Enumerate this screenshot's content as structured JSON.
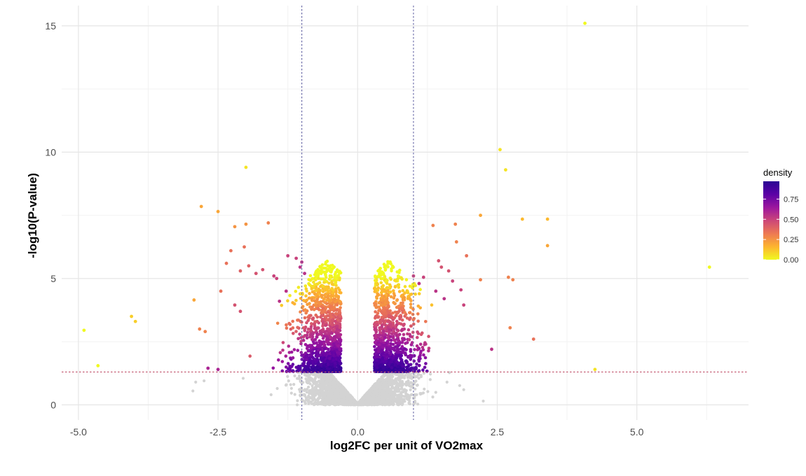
{
  "chart_data": {
    "type": "scatter",
    "xlabel": "log2FC per unit of VO2max",
    "ylabel": "-log10(P-value)",
    "xlim": [
      -5.3,
      7.0
    ],
    "ylim": [
      -0.6,
      15.8
    ],
    "x_ticks": [
      -5.0,
      -2.5,
      0.0,
      2.5,
      5.0
    ],
    "x_tick_labels": [
      "-5.0",
      "-2.5",
      "0.0",
      "2.5",
      "5.0"
    ],
    "y_ticks": [
      0,
      5,
      10,
      15
    ],
    "y_tick_labels": [
      "0",
      "5",
      "10",
      "15"
    ],
    "grid": true,
    "thresholds": {
      "vertical_lines_x": [
        -1.0,
        1.0
      ],
      "horizontal_line_y": 1.3,
      "colors": {
        "vertical": "#6b6ba8",
        "horizontal": "#c0506a"
      }
    },
    "legend": {
      "title": "density",
      "placement": "right",
      "ticks": [
        0.0,
        0.25,
        0.5,
        0.75
      ],
      "tick_labels": [
        "0.00",
        "0.25",
        "0.50",
        "0.75"
      ],
      "range": [
        0,
        0.97
      ],
      "colors": [
        "#f0f921",
        "#fdb42f",
        "#ed7953",
        "#cc4778",
        "#9c179e",
        "#5c01a6",
        "#2a0593"
      ]
    },
    "nonsignificant_color": "#d3d3d3",
    "points": [
      {
        "x": 4.07,
        "y": 15.1,
        "d": 0.0
      },
      {
        "x": 2.55,
        "y": 10.1,
        "d": 0.05
      },
      {
        "x": 2.65,
        "y": 9.3,
        "d": 0.05
      },
      {
        "x": 6.3,
        "y": 5.45,
        "d": 0.0
      },
      {
        "x": -2.0,
        "y": 9.4,
        "d": 0.05
      },
      {
        "x": -2.8,
        "y": 7.85,
        "d": 0.2
      },
      {
        "x": -2.5,
        "y": 7.65,
        "d": 0.2
      },
      {
        "x": -2.2,
        "y": 7.05,
        "d": 0.25
      },
      {
        "x": -2.0,
        "y": 7.15,
        "d": 0.25
      },
      {
        "x": -1.6,
        "y": 7.2,
        "d": 0.3
      },
      {
        "x": 2.2,
        "y": 7.5,
        "d": 0.2
      },
      {
        "x": 2.95,
        "y": 7.35,
        "d": 0.15
      },
      {
        "x": 3.4,
        "y": 7.35,
        "d": 0.15
      },
      {
        "x": 3.4,
        "y": 6.3,
        "d": 0.2
      },
      {
        "x": 1.35,
        "y": 7.1,
        "d": 0.3
      },
      {
        "x": 1.75,
        "y": 7.15,
        "d": 0.3
      },
      {
        "x": 1.77,
        "y": 6.45,
        "d": 0.3
      },
      {
        "x": 1.95,
        "y": 5.9,
        "d": 0.35
      },
      {
        "x": 2.2,
        "y": 4.95,
        "d": 0.3
      },
      {
        "x": 2.7,
        "y": 5.05,
        "d": 0.3
      },
      {
        "x": 2.78,
        "y": 4.95,
        "d": 0.3
      },
      {
        "x": 2.73,
        "y": 3.05,
        "d": 0.3
      },
      {
        "x": 3.15,
        "y": 2.6,
        "d": 0.35
      },
      {
        "x": 2.4,
        "y": 2.2,
        "d": 0.55
      },
      {
        "x": 4.25,
        "y": 1.4,
        "d": 0.05
      },
      {
        "x": -4.9,
        "y": 2.95,
        "d": 0.0
      },
      {
        "x": -4.65,
        "y": 1.55,
        "d": 0.0
      },
      {
        "x": -4.05,
        "y": 3.5,
        "d": 0.1
      },
      {
        "x": -3.98,
        "y": 3.3,
        "d": 0.1
      },
      {
        "x": -2.93,
        "y": 4.15,
        "d": 0.2
      },
      {
        "x": -2.83,
        "y": 3.0,
        "d": 0.3
      },
      {
        "x": -2.73,
        "y": 2.9,
        "d": 0.3
      },
      {
        "x": -2.68,
        "y": 1.45,
        "d": 0.6
      },
      {
        "x": -2.5,
        "y": 1.4,
        "d": 0.6
      },
      {
        "x": -2.45,
        "y": 4.5,
        "d": 0.35
      },
      {
        "x": -2.35,
        "y": 5.6,
        "d": 0.35
      },
      {
        "x": -2.27,
        "y": 6.1,
        "d": 0.35
      },
      {
        "x": -2.1,
        "y": 5.3,
        "d": 0.4
      },
      {
        "x": -2.03,
        "y": 6.25,
        "d": 0.35
      },
      {
        "x": -1.95,
        "y": 5.5,
        "d": 0.4
      },
      {
        "x": -1.82,
        "y": 5.2,
        "d": 0.45
      },
      {
        "x": -1.7,
        "y": 5.35,
        "d": 0.45
      },
      {
        "x": -1.5,
        "y": 5.1,
        "d": 0.5
      },
      {
        "x": -1.45,
        "y": 5.0,
        "d": 0.5
      },
      {
        "x": -1.25,
        "y": 5.9,
        "d": 0.5
      },
      {
        "x": -1.1,
        "y": 5.8,
        "d": 0.5
      },
      {
        "x": -1.0,
        "y": 5.65,
        "d": 0.55
      },
      {
        "x": -1.03,
        "y": 5.45,
        "d": 0.55
      },
      {
        "x": -0.95,
        "y": 5.2,
        "d": 0.55
      },
      {
        "x": -2.2,
        "y": 3.95,
        "d": 0.45
      },
      {
        "x": -2.1,
        "y": 3.7,
        "d": 0.45
      },
      {
        "x": -1.28,
        "y": 4.5,
        "d": 0.55
      },
      {
        "x": -1.4,
        "y": 4.1,
        "d": 0.55
      },
      {
        "x": 1.0,
        "y": 5.1,
        "d": 0.5
      },
      {
        "x": 1.18,
        "y": 5.05,
        "d": 0.5
      },
      {
        "x": 1.1,
        "y": 4.8,
        "d": 0.55
      },
      {
        "x": 1.45,
        "y": 5.7,
        "d": 0.45
      },
      {
        "x": 1.5,
        "y": 5.45,
        "d": 0.45
      },
      {
        "x": 1.63,
        "y": 5.3,
        "d": 0.45
      },
      {
        "x": 1.7,
        "y": 4.9,
        "d": 0.5
      },
      {
        "x": 1.85,
        "y": 4.55,
        "d": 0.5
      },
      {
        "x": 1.9,
        "y": 3.95,
        "d": 0.5
      },
      {
        "x": 1.4,
        "y": 4.5,
        "d": 0.55
      },
      {
        "x": 1.55,
        "y": 4.2,
        "d": 0.55
      }
    ]
  }
}
